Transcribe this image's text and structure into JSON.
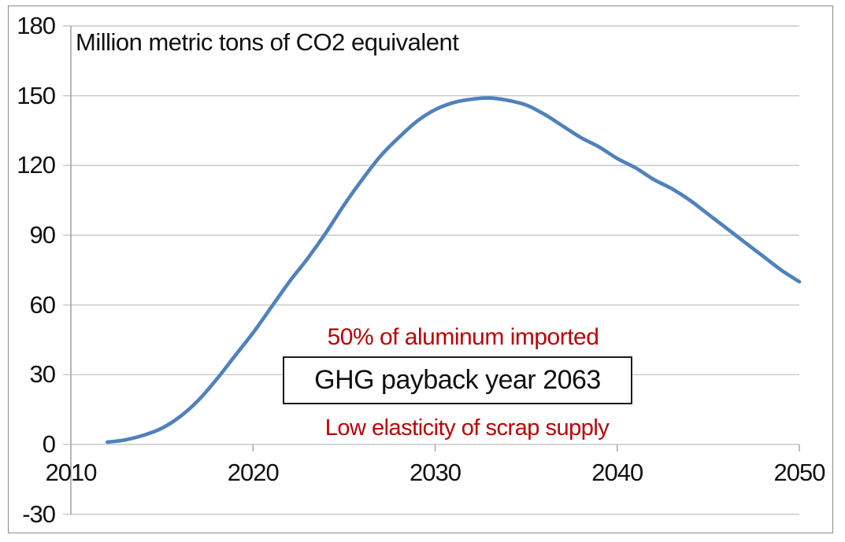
{
  "chart_data": {
    "type": "line",
    "title": "Million metric tons of CO2 equivalent",
    "x": [
      2012,
      2013,
      2014,
      2015,
      2016,
      2017,
      2018,
      2019,
      2020,
      2021,
      2022,
      2023,
      2024,
      2025,
      2026,
      2027,
      2028,
      2029,
      2030,
      2031,
      2032,
      2033,
      2034,
      2035,
      2036,
      2037,
      2038,
      2039,
      2040,
      2041,
      2042,
      2043,
      2044,
      2045,
      2046,
      2047,
      2048,
      2049,
      2050
    ],
    "series": [
      {
        "values": [
          1,
          2,
          4,
          7,
          12,
          19,
          28,
          38,
          48,
          59,
          70,
          80,
          91,
          103,
          114,
          124,
          132,
          139,
          144,
          147,
          148.5,
          149,
          148,
          146,
          142,
          137,
          132,
          128,
          123,
          119,
          114,
          110,
          105,
          99,
          93,
          87,
          81,
          75,
          70
        ]
      }
    ],
    "xlabel": "",
    "ylabel": "",
    "xlim": [
      2010,
      2050
    ],
    "ylim": [
      -30,
      180
    ],
    "grid": "horizontal",
    "legend": "none",
    "y_ticks": [
      {
        "label": "180",
        "value": 180
      },
      {
        "label": "150",
        "value": 150
      },
      {
        "label": "120",
        "value": 120
      },
      {
        "label": "90",
        "value": 90
      },
      {
        "label": "60",
        "value": 60
      },
      {
        "label": "30",
        "value": 30
      },
      {
        "label": "0",
        "value": 0
      },
      {
        "label": "-30",
        "value": -30
      }
    ],
    "x_ticks": [
      {
        "label": "2010",
        "value": 2010
      },
      {
        "label": "2020",
        "value": 2020
      },
      {
        "label": "2030",
        "value": 2030
      },
      {
        "label": "2040",
        "value": 2040
      },
      {
        "label": "2050",
        "value": 2050
      }
    ],
    "annotations": {
      "imported": "50% of aluminum imported",
      "payback": "GHG payback year 2063",
      "scrap": "Low elasticity of scrap supply"
    },
    "colors": {
      "line": "#4F81BD",
      "annotation_red": "#C00000",
      "grid": "#C9C9C9",
      "axis": "#A6A6A6",
      "border": "#8A8A8A",
      "text": "#111111"
    }
  }
}
